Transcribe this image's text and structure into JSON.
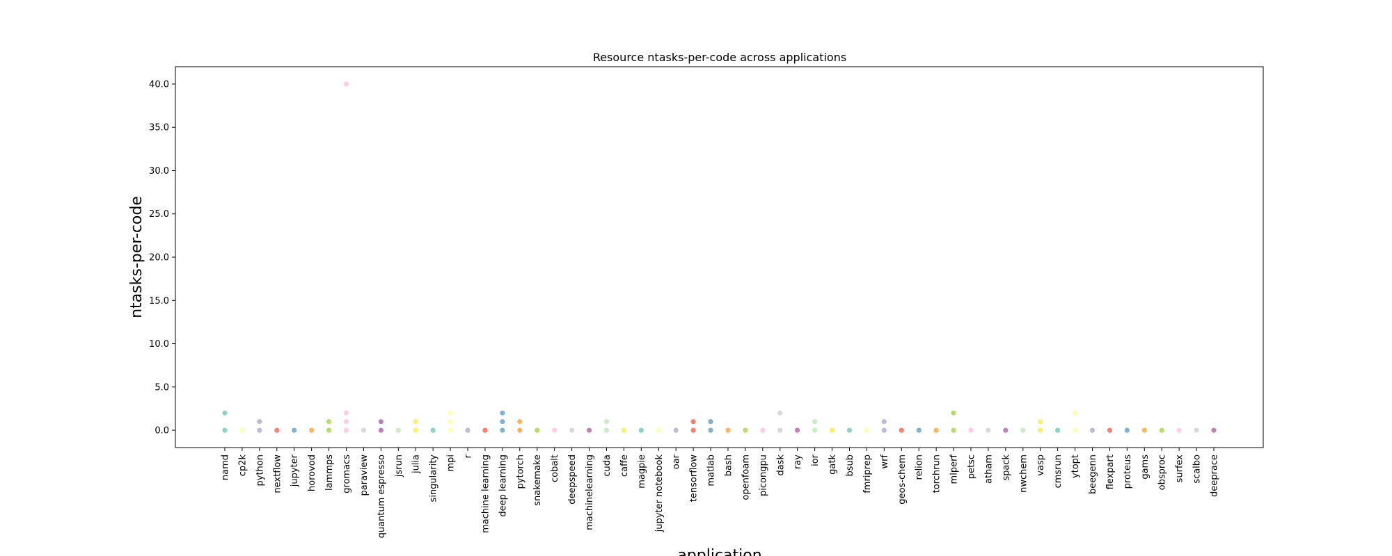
{
  "chart_data": {
    "type": "scatter",
    "title": "Resource ntasks-per-code across applications",
    "xlabel": "application",
    "ylabel": "ntasks-per-code",
    "ylim": [
      -2,
      42
    ],
    "yticks": [
      "0.0",
      "5.0",
      "10.0",
      "15.0",
      "20.0",
      "25.0",
      "30.0",
      "35.0",
      "40.0"
    ],
    "grid": false,
    "legend": "none",
    "categories": [
      "namd",
      "cp2k",
      "python",
      "nextflow",
      "jupyter",
      "horovod",
      "lammps",
      "gromacs",
      "paraview",
      "quantum espresso",
      "jsrun",
      "julia",
      "singularity",
      "mpi",
      "r",
      "machine learning",
      "deep learning",
      "pytorch",
      "snakemake",
      "cobalt",
      "deepspeed",
      "machinelearning",
      "cuda",
      "caffe",
      "magpie",
      "jupyter notebook",
      "oar",
      "tensorflow",
      "matlab",
      "bash",
      "openfoam",
      "picongpu",
      "dask",
      "ray",
      "ior",
      "gatk",
      "bsub",
      "fmriprep",
      "wrf",
      "geos-chem",
      "relion",
      "torchrun",
      "mlperf",
      "petsc",
      "atham",
      "spack",
      "nwchem",
      "vasp",
      "cmsrun",
      "ytopt",
      "beegenn",
      "flexpart",
      "proteus",
      "gams",
      "obsproc",
      "surfex",
      "scalbo",
      "deeprace"
    ],
    "colors": [
      "#8dd3c7",
      "#ffffb3",
      "#bebada",
      "#fb8072",
      "#80b1d3",
      "#fdb462",
      "#b3de69",
      "#fccde5",
      "#d9d9d9",
      "#bc80bd",
      "#ccebc5",
      "#ffed6f"
    ],
    "points": [
      [
        0,
        [
          0,
          2
        ]
      ],
      [
        1,
        [
          0
        ]
      ],
      [
        2,
        [
          0,
          1
        ]
      ],
      [
        3,
        [
          0
        ]
      ],
      [
        4,
        [
          0
        ]
      ],
      [
        5,
        [
          0
        ]
      ],
      [
        6,
        [
          0,
          1
        ]
      ],
      [
        7,
        [
          0,
          1,
          2,
          40
        ]
      ],
      [
        8,
        [
          0
        ]
      ],
      [
        9,
        [
          0,
          1
        ]
      ],
      [
        10,
        [
          0
        ]
      ],
      [
        11,
        [
          0,
          1
        ]
      ],
      [
        12,
        [
          0
        ]
      ],
      [
        13,
        [
          0,
          1,
          2
        ]
      ],
      [
        14,
        [
          0
        ]
      ],
      [
        15,
        [
          0
        ]
      ],
      [
        16,
        [
          0,
          1,
          2
        ]
      ],
      [
        17,
        [
          0,
          1
        ]
      ],
      [
        18,
        [
          0
        ]
      ],
      [
        19,
        [
          0
        ]
      ],
      [
        20,
        [
          0
        ]
      ],
      [
        21,
        [
          0
        ]
      ],
      [
        22,
        [
          0,
          1
        ]
      ],
      [
        23,
        [
          0
        ]
      ],
      [
        24,
        [
          0
        ]
      ],
      [
        25,
        [
          0
        ]
      ],
      [
        26,
        [
          0
        ]
      ],
      [
        27,
        [
          0,
          1
        ]
      ],
      [
        28,
        [
          0,
          1
        ]
      ],
      [
        29,
        [
          0
        ]
      ],
      [
        30,
        [
          0
        ]
      ],
      [
        31,
        [
          0
        ]
      ],
      [
        32,
        [
          0,
          2
        ]
      ],
      [
        33,
        [
          0
        ]
      ],
      [
        34,
        [
          0,
          1
        ]
      ],
      [
        35,
        [
          0
        ]
      ],
      [
        36,
        [
          0
        ]
      ],
      [
        37,
        [
          0
        ]
      ],
      [
        38,
        [
          0,
          1
        ]
      ],
      [
        39,
        [
          0
        ]
      ],
      [
        40,
        [
          0
        ]
      ],
      [
        41,
        [
          0
        ]
      ],
      [
        42,
        [
          0,
          2
        ]
      ],
      [
        43,
        [
          0
        ]
      ],
      [
        44,
        [
          0
        ]
      ],
      [
        45,
        [
          0
        ]
      ],
      [
        46,
        [
          0
        ]
      ],
      [
        47,
        [
          0,
          1
        ]
      ],
      [
        48,
        [
          0
        ]
      ],
      [
        49,
        [
          0,
          2
        ]
      ],
      [
        50,
        [
          0
        ]
      ],
      [
        51,
        [
          0
        ]
      ],
      [
        52,
        [
          0
        ]
      ],
      [
        53,
        [
          0
        ]
      ],
      [
        54,
        [
          0
        ]
      ],
      [
        55,
        [
          0
        ]
      ],
      [
        56,
        [
          0
        ]
      ],
      [
        57,
        [
          0
        ]
      ]
    ]
  }
}
